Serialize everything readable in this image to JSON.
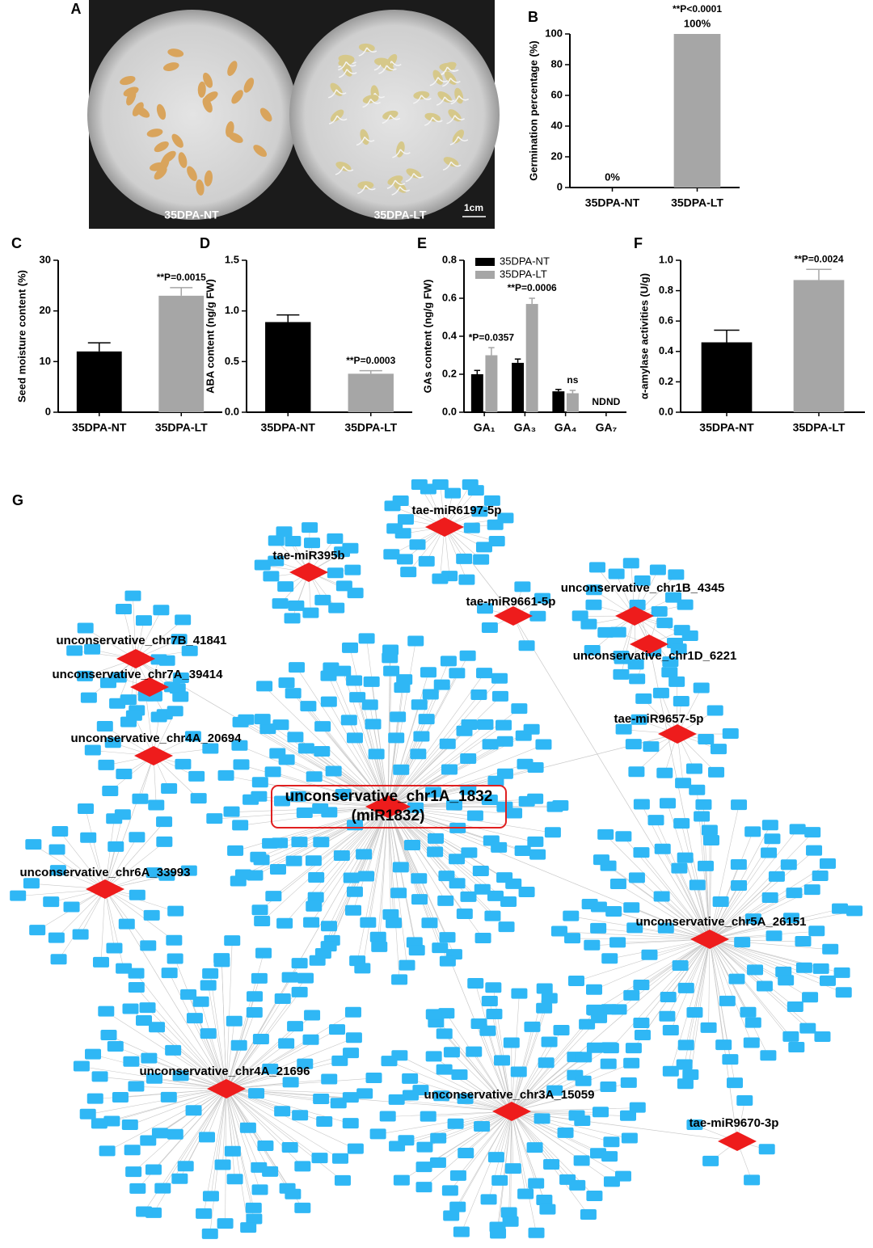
{
  "panel_a": {
    "panel": "A",
    "labels": [
      "35DPA-NT",
      "35DPA-LT"
    ],
    "scale": "1cm"
  },
  "chart_data": [
    {
      "type": "bar",
      "panel": "B",
      "ylabel": "Germination percentage (%)",
      "categories": [
        "35DPA-NT",
        "35DPA-LT"
      ],
      "values": [
        0,
        100
      ],
      "value_labels": [
        "0%",
        "100%"
      ],
      "colors": [
        "#000000",
        "#a6a6a6"
      ],
      "ylim": [
        0,
        100
      ],
      "yticks": [
        0,
        20,
        40,
        60,
        80,
        100
      ],
      "annotations": [
        {
          "text": "**P<0.0001",
          "category": "35DPA-LT"
        }
      ]
    },
    {
      "type": "bar",
      "panel": "C",
      "ylabel": "Seed moisture content (%)",
      "categories": [
        "35DPA-NT",
        "35DPA-LT"
      ],
      "values": [
        12,
        23
      ],
      "errors": [
        1.7,
        1.6
      ],
      "colors": [
        "#000000",
        "#a6a6a6"
      ],
      "ylim": [
        0,
        30
      ],
      "yticks": [
        0,
        10,
        20,
        30
      ],
      "annotations": [
        {
          "text": "**P=0.0015",
          "category": "35DPA-LT"
        }
      ]
    },
    {
      "type": "bar",
      "panel": "D",
      "ylabel": "ABA content (ng/g FW)",
      "categories": [
        "35DPA-NT",
        "35DPA-LT"
      ],
      "values": [
        0.89,
        0.38
      ],
      "errors": [
        0.07,
        0.03
      ],
      "colors": [
        "#000000",
        "#a6a6a6"
      ],
      "ylim": [
        0,
        1.5
      ],
      "yticks": [
        {
          "value": 0,
          "label": "0.0"
        },
        0.5,
        {
          "value": 1,
          "label": "1.0"
        },
        1.5
      ],
      "annotations": [
        {
          "text": "**P=0.0003",
          "category": "35DPA-LT"
        }
      ]
    },
    {
      "type": "grouped-bar",
      "panel": "E",
      "ylabel": "GAs content (ng/g FW)",
      "categories": [
        "GA₁",
        "GA₃",
        "GA₄",
        "GA₇"
      ],
      "series": [
        {
          "name": "35DPA-NT",
          "color": "#000000",
          "values": [
            0.2,
            0.26,
            0.11,
            null
          ],
          "errors": [
            0.02,
            0.02,
            0.01,
            null
          ]
        },
        {
          "name": "35DPA-LT",
          "color": "#a6a6a6",
          "values": [
            0.3,
            0.57,
            0.1,
            null
          ],
          "errors": [
            0.04,
            0.03,
            0.015,
            null
          ]
        }
      ],
      "ylim": [
        0,
        0.8
      ],
      "yticks": [
        {
          "value": 0,
          "label": "0.0"
        },
        0.2,
        0.4,
        0.6,
        0.8
      ],
      "annotations": [
        {
          "text": "*P=0.0357",
          "category": "GA₁",
          "series": "35DPA-LT"
        },
        {
          "text": "**P=0.0006",
          "category": "GA₃",
          "series": "35DPA-LT"
        },
        {
          "text": "ns",
          "category": "GA₄",
          "series": "35DPA-LT"
        },
        {
          "text": "ND",
          "category": "GA₇",
          "series": "35DPA-NT"
        },
        {
          "text": "ND",
          "category": "GA₇",
          "series": "35DPA-LT"
        }
      ]
    },
    {
      "type": "bar",
      "panel": "F",
      "ylabel": "α-amylase activities (U/g)",
      "categories": [
        "35DPA-NT",
        "35DPA-LT"
      ],
      "values": [
        0.46,
        0.87
      ],
      "errors": [
        0.08,
        0.07
      ],
      "colors": [
        "#000000",
        "#a6a6a6"
      ],
      "ylim": [
        0,
        1
      ],
      "yticks": [
        {
          "value": 0,
          "label": "0.0"
        },
        0.2,
        0.4,
        0.6,
        0.8,
        {
          "value": 1,
          "label": "1.0"
        }
      ],
      "annotations": [
        {
          "text": "**P=0.0024",
          "category": "35DPA-LT"
        }
      ]
    }
  ],
  "network": {
    "panel": "G",
    "hubs": [
      {
        "label": "tae-miR6197-5p"
      },
      {
        "label": "tae-miR395b"
      },
      {
        "label": "tae-miR9661-5p"
      },
      {
        "label": "unconservative_chr1B_4345"
      },
      {
        "label": "unconservative_chr1D_6221"
      },
      {
        "label": "unconservative_chr7B_41841"
      },
      {
        "label": "unconservative_chr7A_39414"
      },
      {
        "label": "unconservative_chr4A_20694"
      },
      {
        "label": "unconservative_chr1A_1832",
        "sublabel": "(miR1832)"
      },
      {
        "label": "tae-miR9657-5p"
      },
      {
        "label": "unconservative_chr6A_33993"
      },
      {
        "label": "unconservative_chr5A_26151"
      },
      {
        "label": "unconservative_chr4A_21696"
      },
      {
        "label": "unconservative_chr3A_15059"
      },
      {
        "label": "tae-miR9670-3p"
      }
    ]
  }
}
